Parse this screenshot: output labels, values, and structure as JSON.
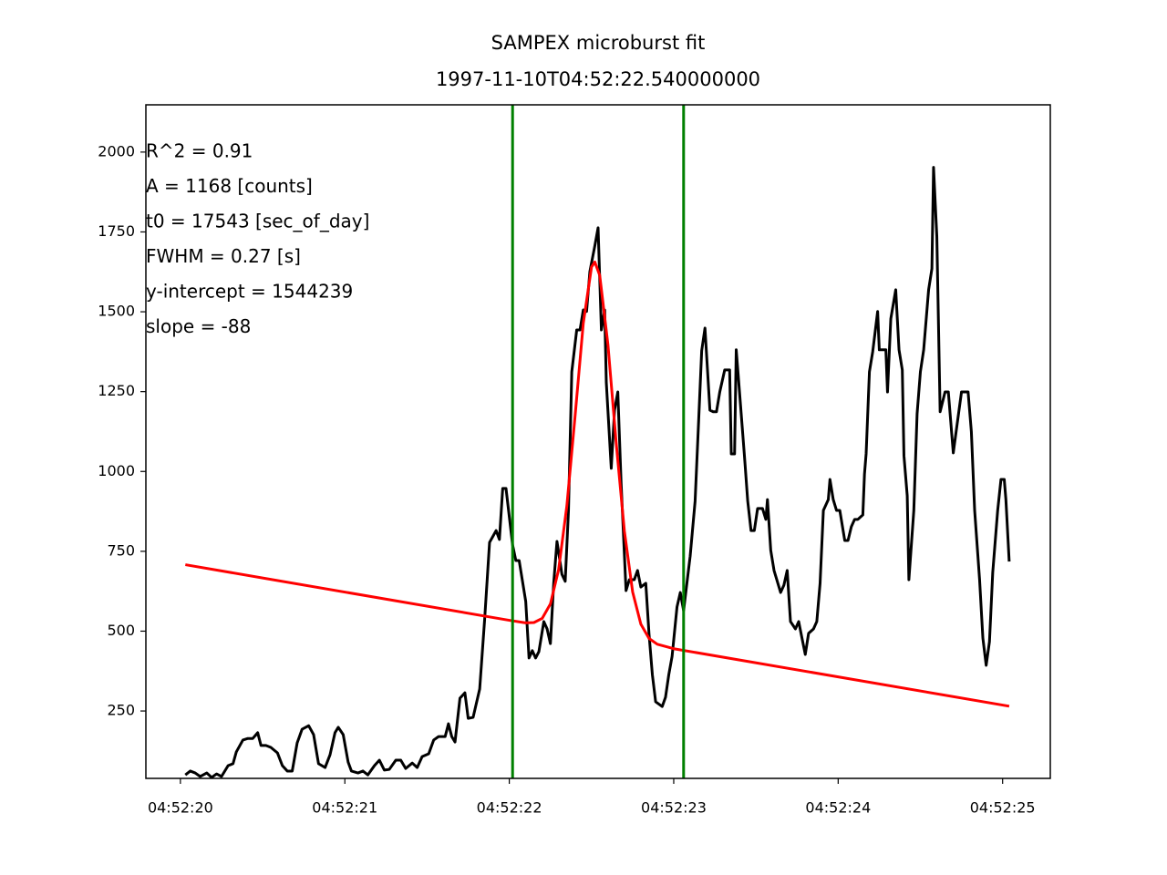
{
  "chart_data": {
    "type": "line",
    "title": "SAMPEX microburst fit",
    "subtitle": "1997-11-10T04:52:22.540000000",
    "annotations": [
      "R^2 = 0.91",
      "A = 1168 [counts]",
      "t0 = 17543 [sec_of_day]",
      "FWHM = 0.27 [s]",
      "y-intercept = 1544239",
      "slope = -88"
    ],
    "xlim": [
      17539.79,
      17545.29
    ],
    "ylim": [
      39,
      2148
    ],
    "xticks": [
      {
        "value": 17540,
        "label": "04:52:20"
      },
      {
        "value": 17541,
        "label": "04:52:21"
      },
      {
        "value": 17542,
        "label": "04:52:22"
      },
      {
        "value": 17543,
        "label": "04:52:23"
      },
      {
        "value": 17544,
        "label": "04:52:24"
      },
      {
        "value": 17545,
        "label": "04:52:25"
      }
    ],
    "yticks": [
      250,
      500,
      750,
      1000,
      1250,
      1500,
      1750,
      2000
    ],
    "vlines": {
      "color": "#008000",
      "x": [
        17542.02,
        17543.06
      ]
    },
    "series": [
      {
        "color": "#000000",
        "x": [
          17540.03,
          17540.06,
          17540.09,
          17540.12,
          17540.16,
          17540.19,
          17540.22,
          17540.25,
          17540.29,
          17540.32,
          17540.34,
          17540.38,
          17540.41,
          17540.44,
          17540.47,
          17540.49,
          17540.52,
          17540.55,
          17540.59,
          17540.62,
          17540.65,
          17540.68,
          17540.71,
          17540.74,
          17540.78,
          17540.81,
          17540.84,
          17540.88,
          17540.91,
          17540.94,
          17540.96,
          17540.99,
          17541.02,
          17541.04,
          17541.08,
          17541.11,
          17541.14,
          17541.18,
          17541.21,
          17541.24,
          17541.27,
          17541.31,
          17541.34,
          17541.37,
          17541.41,
          17541.44,
          17541.47,
          17541.51,
          17541.54,
          17541.57,
          17541.61,
          17541.63,
          17541.65,
          17541.67,
          17541.7,
          17541.73,
          17541.75,
          17541.78,
          17541.82,
          17541.85,
          17541.88,
          17541.92,
          17541.94,
          17541.96,
          17541.98,
          17542.02,
          17542.04,
          17542.06,
          17542.1,
          17542.12,
          17542.14,
          17542.16,
          17542.18,
          17542.21,
          17542.23,
          17542.25,
          17542.27,
          17542.29,
          17542.32,
          17542.34,
          17542.36,
          17542.38,
          17542.41,
          17542.43,
          17542.45,
          17542.47,
          17542.49,
          17542.52,
          17542.54,
          17542.56,
          17542.58,
          17542.59,
          17542.62,
          17542.64,
          17542.66,
          17542.68,
          17542.71,
          17542.73,
          17542.76,
          17542.78,
          17542.8,
          17542.83,
          17542.85,
          17542.87,
          17542.89,
          17542.93,
          17542.95,
          17542.97,
          17542.99,
          17543.02,
          17543.04,
          17543.06,
          17543.08,
          17543.1,
          17543.13,
          17543.15,
          17543.17,
          17543.19,
          17543.22,
          17543.24,
          17543.26,
          17543.28,
          17543.31,
          17543.34,
          17543.35,
          17543.37,
          17543.38,
          17543.4,
          17543.43,
          17543.45,
          17543.47,
          17543.49,
          17543.51,
          17543.54,
          17543.56,
          17543.57,
          17543.59,
          17543.61,
          17543.65,
          17543.67,
          17543.69,
          17543.71,
          17543.74,
          17543.76,
          17543.78,
          17543.8,
          17543.82,
          17543.85,
          17543.87,
          17543.89,
          17543.91,
          17543.94,
          17543.95,
          17543.97,
          17543.99,
          17544.01,
          17544.04,
          17544.06,
          17544.08,
          17544.1,
          17544.12,
          17544.15,
          17544.16,
          17544.17,
          17544.19,
          17544.21,
          17544.24,
          17544.25,
          17544.27,
          17544.29,
          17544.3,
          17544.32,
          17544.35,
          17544.37,
          17544.39,
          17544.4,
          17544.42,
          17544.43,
          17544.46,
          17544.48,
          17544.5,
          17544.52,
          17544.55,
          17544.57,
          17544.58,
          17544.6,
          17544.62,
          17544.65,
          17544.67,
          17544.7,
          17544.72,
          17544.75,
          17544.77,
          17544.79,
          17544.81,
          17544.83,
          17544.86,
          17544.88,
          17544.9,
          17544.92,
          17544.94,
          17544.97,
          17544.99,
          17545.01,
          17545.02,
          17545.04
        ],
        "values": [
          50,
          62,
          56,
          45,
          56,
          42,
          53,
          45,
          79,
          85,
          122,
          159,
          164,
          164,
          182,
          142,
          142,
          136,
          119,
          79,
          62,
          62,
          150,
          193,
          204,
          176,
          85,
          73,
          113,
          182,
          199,
          176,
          90,
          62,
          56,
          62,
          50,
          79,
          96,
          65,
          67,
          96,
          96,
          70,
          87,
          73,
          107,
          116,
          159,
          170,
          170,
          210,
          170,
          153,
          290,
          307,
          227,
          230,
          319,
          536,
          778,
          815,
          787,
          947,
          947,
          770,
          721,
          721,
          593,
          416,
          439,
          416,
          436,
          530,
          507,
          461,
          650,
          781,
          678,
          656,
          878,
          1312,
          1443,
          1443,
          1506,
          1501,
          1626,
          1706,
          1763,
          1443,
          1506,
          1278,
          1010,
          1192,
          1249,
          964,
          627,
          661,
          661,
          690,
          638,
          650,
          490,
          364,
          279,
          264,
          293,
          364,
          421,
          576,
          621,
          564,
          650,
          735,
          907,
          1141,
          1378,
          1449,
          1192,
          1187,
          1187,
          1249,
          1318,
          1318,
          1055,
          1055,
          1381,
          1249,
          1049,
          907,
          815,
          815,
          884,
          884,
          850,
          912,
          753,
          690,
          621,
          644,
          690,
          530,
          507,
          530,
          478,
          427,
          493,
          507,
          530,
          650,
          878,
          912,
          975,
          912,
          878,
          878,
          784,
          784,
          827,
          850,
          850,
          864,
          992,
          1055,
          1312,
          1375,
          1501,
          1381,
          1381,
          1381,
          1249,
          1478,
          1569,
          1381,
          1318,
          1049,
          924,
          661,
          878,
          1181,
          1312,
          1381,
          1569,
          1635,
          1952,
          1735,
          1187,
          1249,
          1249,
          1058,
          1135,
          1249,
          1249,
          1249,
          1124,
          878,
          661,
          478,
          393,
          467,
          684,
          878,
          975,
          975,
          912,
          718
        ]
      },
      {
        "color": "#ff0000",
        "x": [
          17540.03,
          17542.0,
          17542.1,
          17542.15,
          17542.2,
          17542.25,
          17542.3,
          17542.35,
          17542.4,
          17542.45,
          17542.5,
          17542.52,
          17542.55,
          17542.6,
          17542.65,
          17542.7,
          17542.75,
          17542.8,
          17542.85,
          17542.9,
          17543.0,
          17545.04
        ],
        "values": [
          708,
          534,
          526,
          527,
          540,
          585,
          693,
          892,
          1173,
          1464,
          1640,
          1656,
          1614,
          1397,
          1090,
          813,
          623,
          522,
          477,
          459,
          445,
          265
        ]
      }
    ]
  }
}
